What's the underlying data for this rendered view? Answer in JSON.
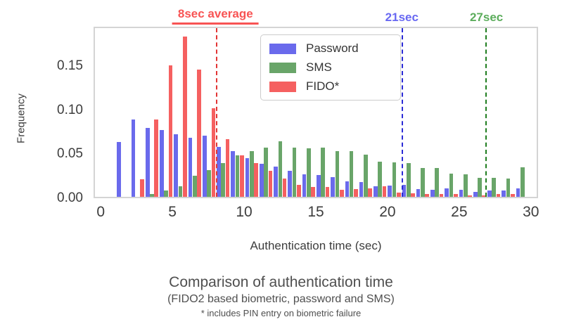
{
  "figure": {
    "background": "#ffffff"
  },
  "chart_data": {
    "type": "bar",
    "subtype": "grouped-histogram",
    "title": "Comparison of authentication time",
    "xlabel": "Authentication time (sec)",
    "ylabel": "Frequency",
    "xlim": [
      -0.5,
      30.5
    ],
    "ylim": [
      0,
      0.195
    ],
    "grid": false,
    "legend_position": "upper-center",
    "xticks": [
      {
        "v": 0,
        "label": "0"
      },
      {
        "v": 5,
        "label": "5"
      },
      {
        "v": 10,
        "label": "10"
      },
      {
        "v": 15,
        "label": "15"
      },
      {
        "v": 20,
        "label": "20"
      },
      {
        "v": 25,
        "label": "25"
      },
      {
        "v": 30,
        "label": "30"
      }
    ],
    "yticks": [
      {
        "v": 0.0,
        "label": "0.00"
      },
      {
        "v": 0.05,
        "label": "0.05"
      },
      {
        "v": 0.1,
        "label": "0.10"
      },
      {
        "v": 0.15,
        "label": "0.15"
      }
    ],
    "bin_start": 1,
    "bin_width": 1,
    "categories": [
      1,
      2,
      3,
      4,
      5,
      6,
      7,
      8,
      9,
      10,
      11,
      12,
      13,
      14,
      15,
      16,
      17,
      18,
      19,
      20,
      21,
      22,
      23,
      24,
      25,
      26,
      27,
      28,
      29
    ],
    "series": [
      {
        "name": "Password",
        "color": "#6a6aec",
        "values": [
          0.063,
          0.089,
          0.08,
          0.077,
          0.072,
          0.068,
          0.071,
          0.058,
          0.053,
          0.045,
          0.038,
          0.035,
          0.03,
          0.026,
          0.025,
          0.023,
          0.018,
          0.017,
          0.012,
          0.013,
          0.014,
          0.009,
          0.008,
          0.01,
          0.008,
          0.006,
          0.007,
          0.007,
          0.01
        ]
      },
      {
        "name": "SMS",
        "color": "#69a569",
        "values": [
          0.0,
          0.0,
          0.003,
          0.007,
          0.012,
          0.024,
          0.031,
          0.039,
          0.048,
          0.053,
          0.057,
          0.064,
          0.057,
          0.056,
          0.057,
          0.053,
          0.053,
          0.049,
          0.041,
          0.04,
          0.039,
          0.033,
          0.033,
          0.027,
          0.026,
          0.022,
          0.022,
          0.021,
          0.034
        ]
      },
      {
        "name": "FIDO*",
        "color": "#f56060",
        "values": [
          0.0,
          0.02,
          0.089,
          0.152,
          0.185,
          0.147,
          0.102,
          0.067,
          0.048,
          0.039,
          0.03,
          0.021,
          0.014,
          0.011,
          0.011,
          0.008,
          0.009,
          0.01,
          0.012,
          0.005,
          0.004,
          0.003,
          0.003,
          0.003,
          0.002,
          0.002,
          0.003,
          0.003,
          0.0
        ]
      }
    ],
    "vlines": [
      {
        "x": 8.0,
        "label": "8sec average",
        "line_color": "#e23434",
        "label_color": "#f85454",
        "underline": true
      },
      {
        "x": 21.0,
        "label": "21sec",
        "line_color": "#2b2bd6",
        "label_color": "#6868f2",
        "underline": false
      },
      {
        "x": 26.9,
        "label": "27sec",
        "line_color": "#1f7d1f",
        "label_color": "#5cad5c",
        "underline": false
      }
    ]
  },
  "caption": {
    "title": "Comparison of authentication time",
    "subtitle": "(FIDO2 based biometric, password and SMS)",
    "note": "* includes PIN entry on biometric failure"
  }
}
